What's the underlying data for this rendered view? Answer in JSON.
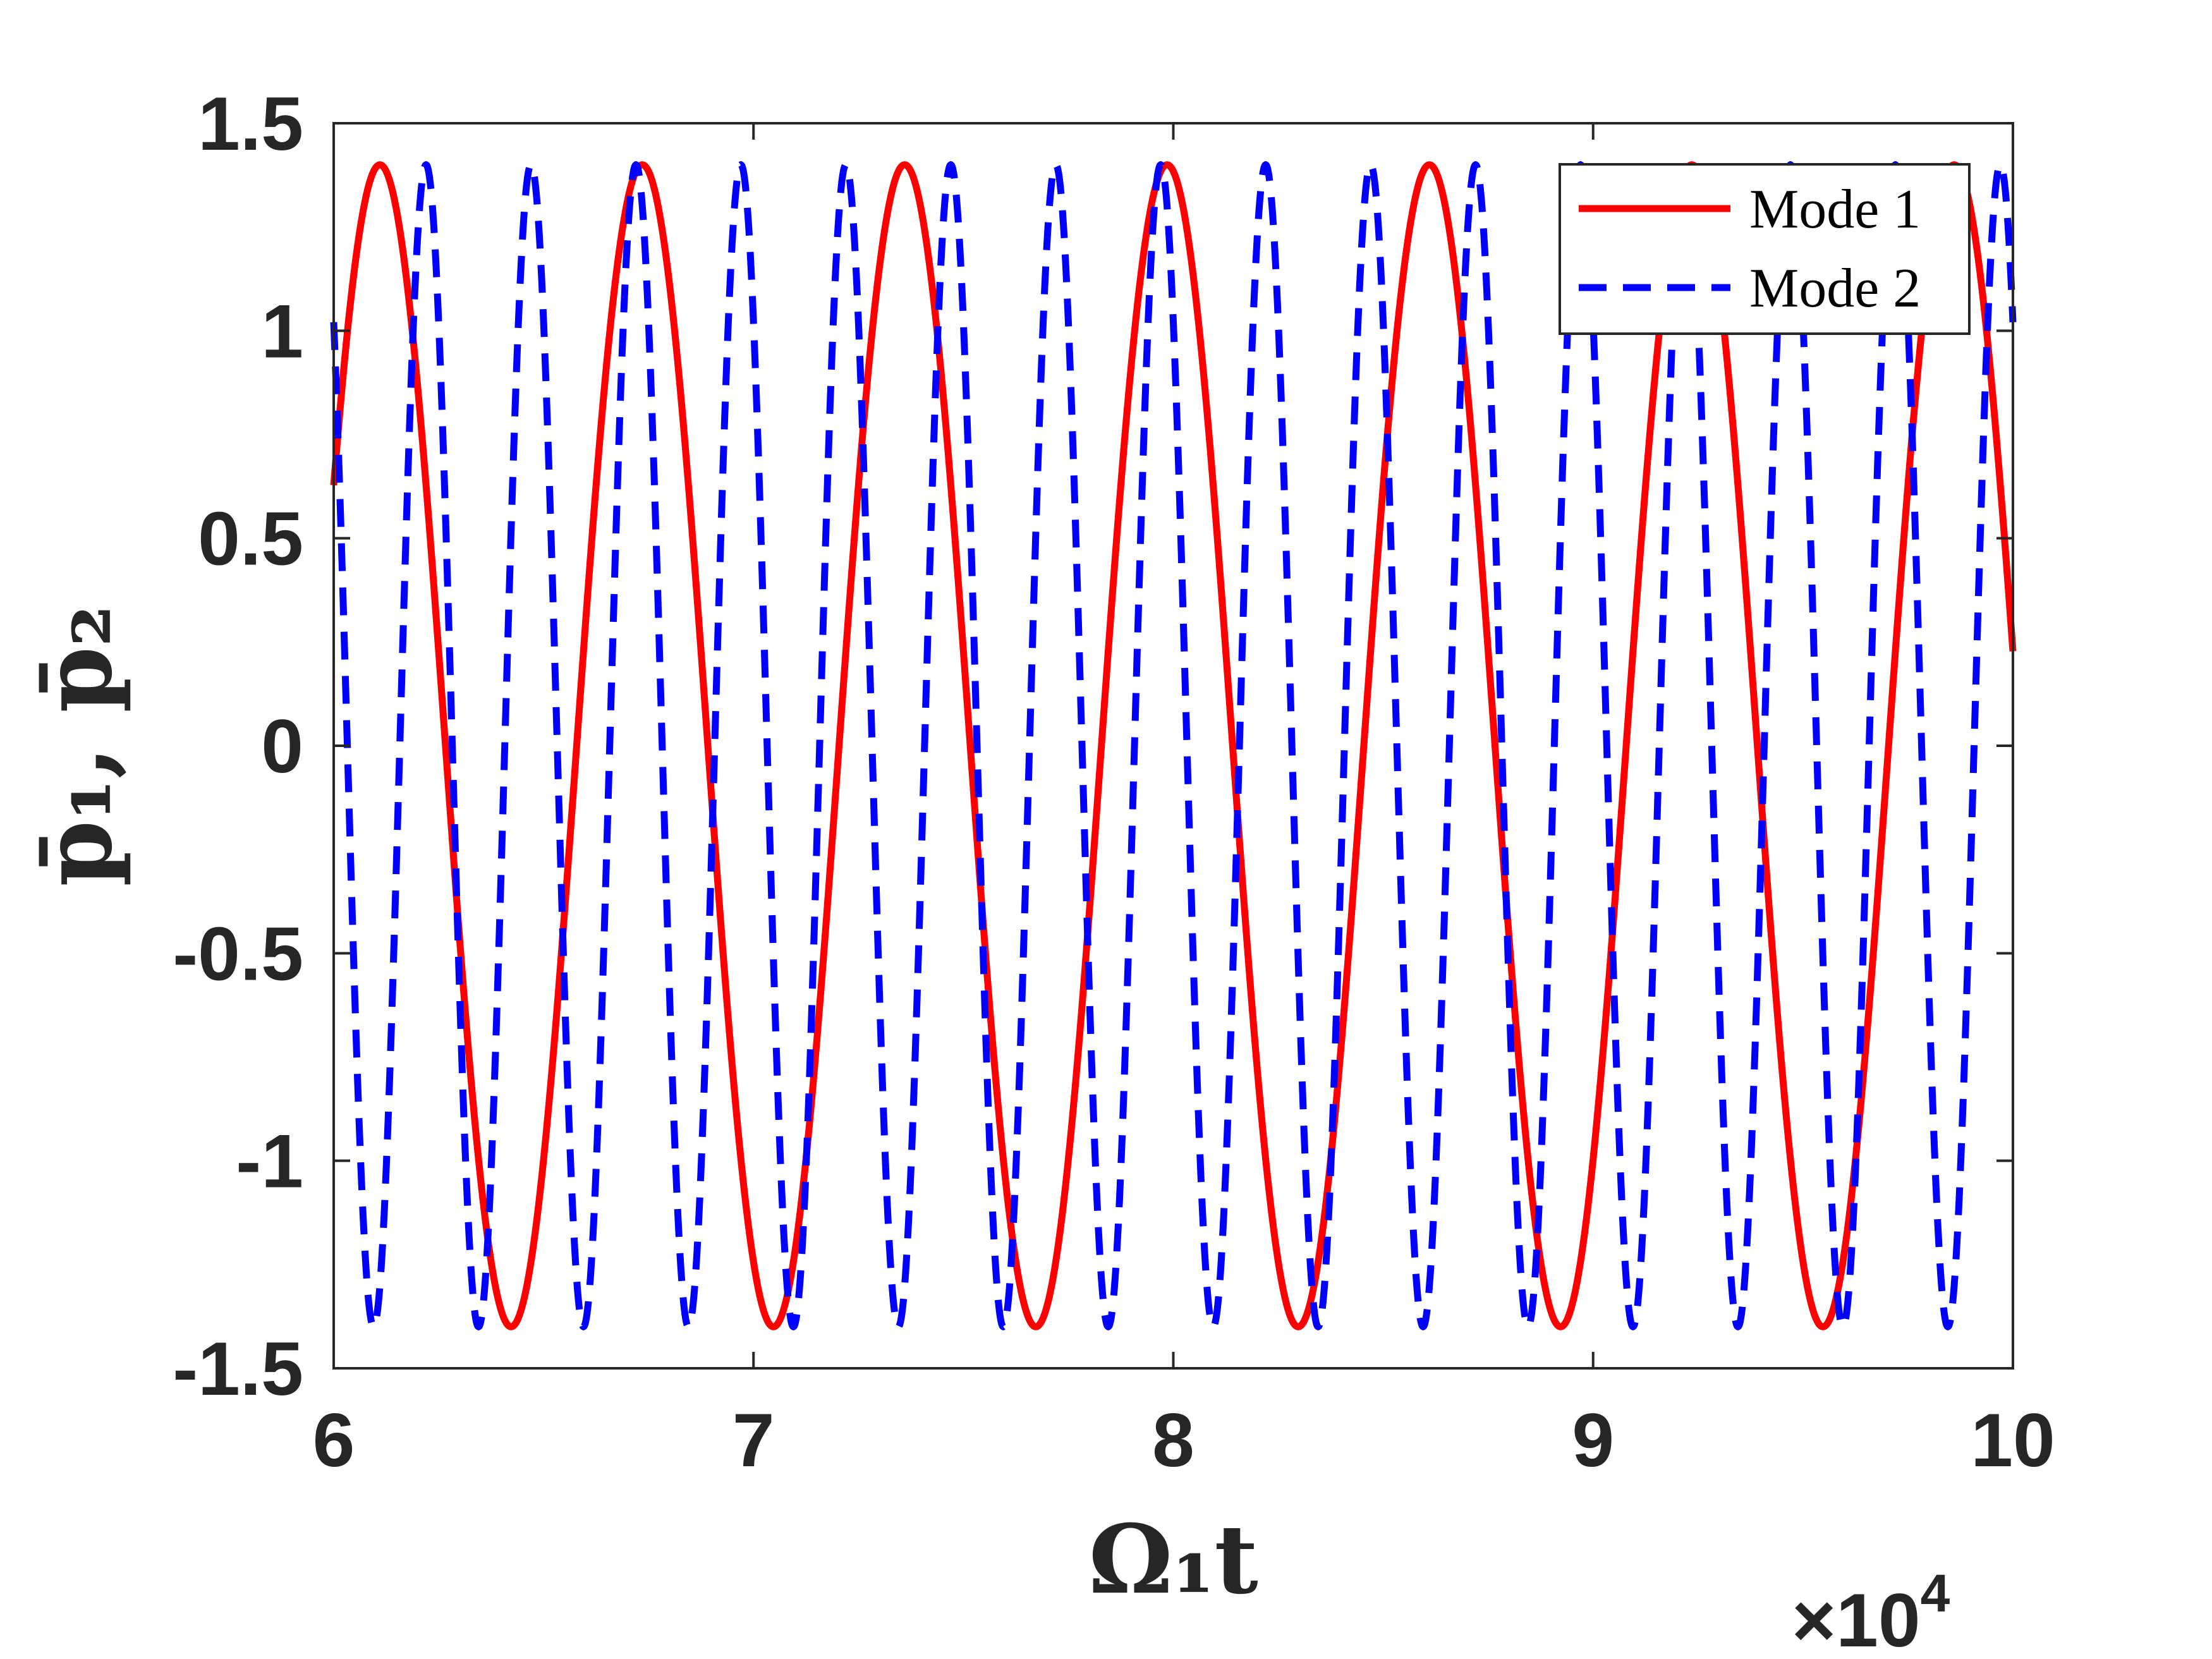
{
  "chart_data": {
    "type": "line",
    "xlabel": "Ω₁t",
    "ylabel": "p̄₁, p̄₂",
    "x_exponent_label": "×10",
    "x_exponent_power": "4",
    "xlim": [
      6,
      10
    ],
    "ylim": [
      -1.5,
      1.5
    ],
    "x_ticks": [
      "6",
      "7",
      "8",
      "9",
      "10"
    ],
    "y_ticks": [
      "-1.5",
      "-1",
      "-0.5",
      "0",
      "0.5",
      "1",
      "1.5"
    ],
    "grid": false,
    "legend_position": "top-right",
    "series": [
      {
        "name": "Mode 1",
        "style": "solid",
        "color": "#ff0000",
        "amplitude": 1.4,
        "period": 0.625,
        "first_peak_x": 6.11,
        "x_units": "×10^4"
      },
      {
        "name": "Mode 2",
        "style": "dashed",
        "color": "#0000ff",
        "amplitude": 1.4,
        "period": 0.25,
        "first_peak_x": 6.22,
        "x_units": "×10^4"
      }
    ]
  }
}
